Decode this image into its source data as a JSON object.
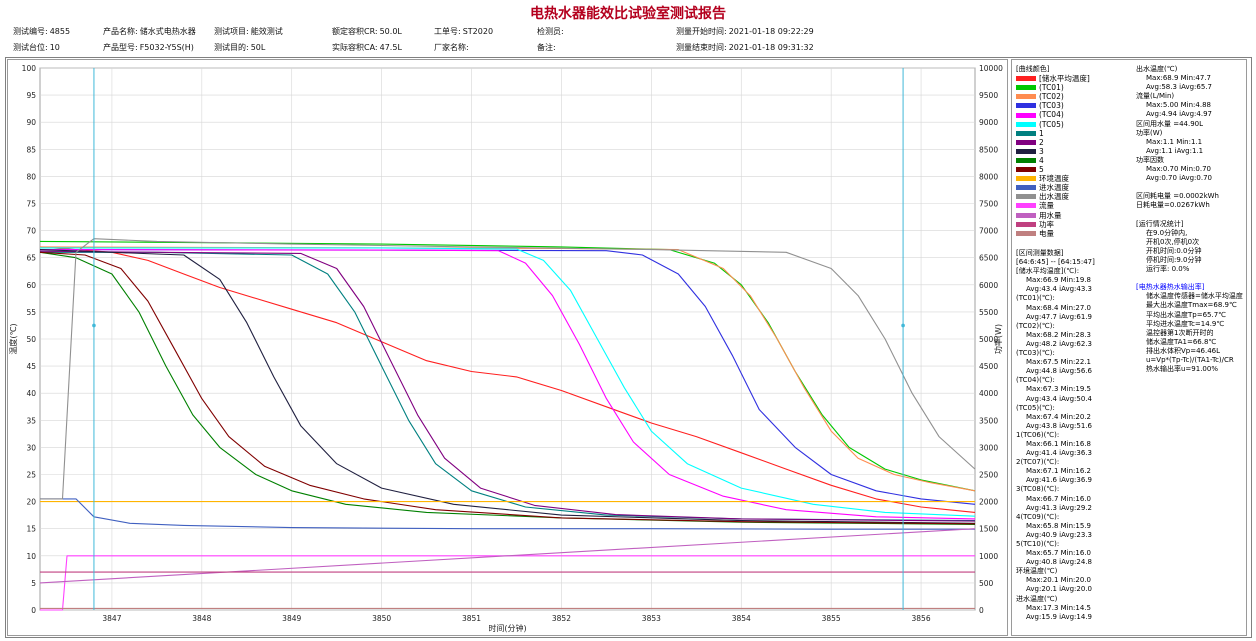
{
  "report": {
    "title": "电热水器能效比试验室测试报告",
    "fields": [
      {
        "label": "测试编号:",
        "value": "4855"
      },
      {
        "label": "产品名称:",
        "value": "储水式电热水器"
      },
      {
        "label": "测试项目:",
        "value": "能效测试"
      },
      {
        "label": "额定容积CR:",
        "value": "50.0L"
      },
      {
        "label": "工单号:",
        "value": "ST2020"
      },
      {
        "label": "检测员:",
        "value": ""
      },
      {
        "label": "测量开始时间:",
        "value": "2021-01-18 09:22:29"
      },
      {
        "label": "测试台位:",
        "value": "10"
      },
      {
        "label": "产品型号:",
        "value": "F5032-Y5S(H)"
      },
      {
        "label": "测试目的:",
        "value": "50L"
      },
      {
        "label": "实际容积CA:",
        "value": "47.5L"
      },
      {
        "label": "厂家名称:",
        "value": ""
      },
      {
        "label": "备注:",
        "value": ""
      },
      {
        "label": "测量结束时间:",
        "value": "2021-01-18 09:31:32"
      }
    ]
  },
  "chart_data": {
    "type": "line",
    "xlabel": "时间(分钟)",
    "ylabel": "温度(℃)",
    "y2label": "功率(W)",
    "xlim": [
      3846.2,
      3856.6
    ],
    "ylim": [
      0,
      100
    ],
    "y2lim": [
      0,
      10000
    ],
    "xticks": [
      "3847",
      "3848",
      "3849",
      "3850",
      "3851",
      "3852",
      "3853",
      "3854",
      "3855",
      "3856"
    ],
    "yticks": [
      "0",
      "5",
      "10",
      "15",
      "20",
      "25",
      "30",
      "35",
      "40",
      "45",
      "50",
      "55",
      "60",
      "65",
      "70",
      "75",
      "80",
      "85",
      "90",
      "95",
      "100"
    ],
    "y2ticks": [
      "0",
      "500",
      "1000",
      "1500",
      "2000",
      "2500",
      "3000",
      "3500",
      "4000",
      "4500",
      "5000",
      "5500",
      "6000",
      "6500",
      "7000",
      "7500",
      "8000",
      "8500",
      "9000",
      "9500",
      "10000"
    ],
    "grid": true,
    "cursors": [
      3846.8,
      3855.8
    ],
    "series": [
      {
        "name": "[储水平均温度]",
        "color": "#ff2020",
        "x": [
          3846.2,
          3847.0,
          3847.4,
          3847.8,
          3848.2,
          3848.6,
          3849.0,
          3849.5,
          3850.0,
          3850.5,
          3851.0,
          3851.5,
          3852.0,
          3852.5,
          3853.0,
          3853.5,
          3854.0,
          3854.5,
          3855.0,
          3855.5,
          3856.0,
          3856.6
        ],
        "y": [
          67.0,
          66.0,
          64.5,
          62.0,
          59.5,
          57.5,
          55.5,
          53.0,
          49.5,
          46.0,
          44.0,
          43.0,
          40.5,
          37.5,
          34.5,
          32.0,
          29.0,
          26.0,
          23.0,
          20.5,
          19.0,
          18.0
        ]
      },
      {
        "name": "(TC01)",
        "color": "#00c800",
        "x": [
          3846.2,
          3850.0,
          3852.0,
          3853.2,
          3853.7,
          3854.0,
          3854.3,
          3854.6,
          3854.9,
          3855.2,
          3855.6,
          3856.0,
          3856.6
        ],
        "y": [
          68.0,
          67.5,
          67.0,
          66.5,
          64.0,
          60.0,
          53.0,
          44.0,
          36.0,
          30.0,
          26.0,
          24.0,
          22.0
        ]
      },
      {
        "name": "(TC02)",
        "color": "#ff8c50",
        "x": [
          3846.2,
          3850.0,
          3852.0,
          3853.3,
          3853.8,
          3854.1,
          3854.4,
          3854.7,
          3855.0,
          3855.3,
          3855.7,
          3856.1,
          3856.6
        ],
        "y": [
          67.0,
          66.8,
          66.7,
          66.5,
          63.0,
          58.0,
          50.0,
          41.0,
          33.0,
          28.0,
          25.0,
          23.5,
          22.0
        ]
      },
      {
        "name": "(TC03)",
        "color": "#3030e0",
        "x": [
          3846.2,
          3850.0,
          3852.5,
          3852.9,
          3853.3,
          3853.6,
          3853.9,
          3854.2,
          3854.6,
          3855.0,
          3855.5,
          3856.0,
          3856.6
        ],
        "y": [
          66.5,
          66.4,
          66.3,
          65.5,
          62.0,
          56.0,
          47.0,
          37.0,
          30.0,
          25.0,
          22.0,
          20.5,
          19.5
        ]
      },
      {
        "name": "(TC04)",
        "color": "#ff00ff",
        "x": [
          3846.2,
          3850.0,
          3851.3,
          3851.6,
          3851.9,
          3852.2,
          3852.5,
          3852.8,
          3853.2,
          3853.8,
          3854.5,
          3855.5,
          3856.6
        ],
        "y": [
          66.5,
          66.4,
          66.3,
          64.0,
          58.0,
          49.0,
          39.0,
          31.0,
          25.0,
          21.0,
          18.5,
          17.2,
          16.8
        ]
      },
      {
        "name": "(TC05)",
        "color": "#00ffff",
        "x": [
          3846.2,
          3850.0,
          3851.5,
          3851.8,
          3852.1,
          3852.4,
          3852.7,
          3853.0,
          3853.4,
          3854.0,
          3854.8,
          3855.6,
          3856.6
        ],
        "y": [
          66.8,
          66.8,
          66.6,
          64.5,
          59.0,
          50.0,
          41.0,
          33.0,
          27.0,
          22.5,
          19.5,
          18.0,
          17.3
        ]
      },
      {
        "name": "1",
        "color": "#008080",
        "x": [
          3846.2,
          3847.5,
          3849.0,
          3849.4,
          3849.7,
          3850.0,
          3850.3,
          3850.6,
          3851.0,
          3851.6,
          3852.5,
          3854.0,
          3856.6
        ],
        "y": [
          66.0,
          66.0,
          65.5,
          62.0,
          55.0,
          45.0,
          35.0,
          27.0,
          22.0,
          19.0,
          17.5,
          16.8,
          16.5
        ]
      },
      {
        "name": "2",
        "color": "#800080",
        "x": [
          3846.2,
          3847.5,
          3849.1,
          3849.5,
          3849.8,
          3850.1,
          3850.4,
          3850.7,
          3851.1,
          3851.7,
          3852.6,
          3854.0,
          3856.6
        ],
        "y": [
          66.2,
          66.0,
          65.8,
          63.0,
          56.0,
          46.0,
          36.0,
          28.0,
          22.5,
          19.3,
          17.6,
          16.8,
          16.4
        ]
      },
      {
        "name": "3",
        "color": "#202040",
        "x": [
          3846.2,
          3847.0,
          3847.8,
          3848.2,
          3848.5,
          3848.8,
          3849.1,
          3849.5,
          3850.0,
          3850.8,
          3852.0,
          3854.0,
          3856.6
        ],
        "y": [
          66.5,
          66.0,
          65.5,
          61.0,
          53.0,
          43.0,
          34.0,
          27.0,
          22.5,
          19.5,
          17.5,
          16.5,
          16.0
        ]
      },
      {
        "name": "4",
        "color": "#008000",
        "x": [
          3846.2,
          3846.6,
          3847.0,
          3847.3,
          3847.6,
          3847.9,
          3848.2,
          3848.6,
          3849.0,
          3849.6,
          3850.5,
          3852.0,
          3854.0,
          3856.6
        ],
        "y": [
          66.0,
          65.0,
          62.0,
          55.0,
          45.0,
          36.0,
          30.0,
          25.0,
          22.0,
          19.5,
          18.0,
          17.0,
          16.2,
          15.8
        ]
      },
      {
        "name": "5",
        "color": "#800000",
        "x": [
          3846.2,
          3846.7,
          3847.1,
          3847.4,
          3847.7,
          3848.0,
          3848.3,
          3848.7,
          3849.2,
          3849.8,
          3850.6,
          3852.0,
          3854.0,
          3856.6
        ],
        "y": [
          66.0,
          65.5,
          63.0,
          57.0,
          48.0,
          39.0,
          32.0,
          26.5,
          23.0,
          20.5,
          18.5,
          17.0,
          16.3,
          15.9
        ]
      },
      {
        "name": "环境温度",
        "color": "#ffb400",
        "x": [
          3846.2,
          3856.6
        ],
        "y": [
          20.0,
          20.0
        ]
      },
      {
        "name": "进水温度",
        "color": "#4060c0",
        "x": [
          3846.2,
          3846.6,
          3846.8,
          3847.2,
          3847.8,
          3849.0,
          3851.0,
          3853.0,
          3855.0,
          3856.6
        ],
        "y": [
          20.5,
          20.5,
          17.2,
          16.0,
          15.6,
          15.2,
          15.0,
          15.0,
          14.9,
          14.9
        ]
      },
      {
        "name": "出水温度",
        "color": "#909090",
        "x": [
          3846.2,
          3846.45,
          3846.6,
          3846.8,
          3847.5,
          3849.0,
          3851.0,
          3853.0,
          3854.5,
          3855.0,
          3855.3,
          3855.6,
          3855.9,
          3856.2,
          3856.6
        ],
        "y": [
          20.5,
          20.5,
          66.0,
          68.5,
          68.0,
          67.5,
          67.0,
          66.5,
          66.0,
          63.0,
          58.0,
          50.0,
          40.0,
          32.0,
          26.0
        ]
      },
      {
        "name": "流量",
        "color": "#ff40ff",
        "x": [
          3846.2,
          3846.45,
          3846.5,
          3856.6
        ],
        "y": [
          0,
          0,
          10.0,
          10.0
        ]
      },
      {
        "name": "用水量",
        "color": "#c060c0",
        "x": [
          3846.2,
          3856.6
        ],
        "y": [
          5.0,
          15.0
        ]
      },
      {
        "name": "功率",
        "color": "#c04080",
        "x": [
          3846.2,
          3856.6
        ],
        "y": [
          7.0,
          7.0
        ]
      },
      {
        "name": "电量",
        "color": "#c08080",
        "x": [
          3846.2,
          3856.6
        ],
        "y": [
          0.3,
          0.3
        ]
      }
    ]
  },
  "side": {
    "legend_title": "[曲线颜色]",
    "legend": [
      {
        "label": "[储水平均温度]",
        "color": "#ff2020"
      },
      {
        "label": "(TC01)",
        "color": "#00c800"
      },
      {
        "label": "(TC02)",
        "color": "#ff8c50"
      },
      {
        "label": "(TC03)",
        "color": "#3030e0"
      },
      {
        "label": "(TC04)",
        "color": "#ff00ff"
      },
      {
        "label": "(TC05)",
        "color": "#00ffff"
      },
      {
        "label": "1",
        "color": "#008080"
      },
      {
        "label": "2",
        "color": "#800080"
      },
      {
        "label": "3",
        "color": "#202040"
      },
      {
        "label": "4",
        "color": "#008000"
      },
      {
        "label": "5",
        "color": "#800000"
      },
      {
        "label": "环境温度",
        "color": "#ffb400"
      },
      {
        "label": "进水温度",
        "color": "#4060c0"
      },
      {
        "label": "出水温度",
        "color": "#909090"
      },
      {
        "label": "流量",
        "color": "#ff40ff"
      },
      {
        "label": "用水量",
        "color": "#c060c0"
      },
      {
        "label": "功率",
        "color": "#c04080"
      },
      {
        "label": "电量",
        "color": "#c08080"
      }
    ],
    "interval": [
      {
        "t": "[区间测量数据]"
      },
      {
        "t": "[64:6:45] -- [64:15:47]"
      },
      {
        "t": "[储水平均温度](℃):"
      },
      {
        "t": "Max:66.9 Min:19.8",
        "i": true
      },
      {
        "t": "Avg:43.4 iAvg:43.3",
        "i": true
      },
      {
        "t": "(TC01)(℃):"
      },
      {
        "t": "Max:68.4 Min:27.0",
        "i": true
      },
      {
        "t": "Avg:47.7 iAvg:61.9",
        "i": true
      },
      {
        "t": "(TC02)(℃):"
      },
      {
        "t": "Max:68.2 Min:28.3",
        "i": true
      },
      {
        "t": "Avg:48.2 iAvg:62.3",
        "i": true
      },
      {
        "t": "(TC03)(℃):"
      },
      {
        "t": "Max:67.5 Min:22.1",
        "i": true
      },
      {
        "t": "Avg:44.8 iAvg:56.6",
        "i": true
      },
      {
        "t": "(TC04)(℃):"
      },
      {
        "t": "Max:67.3 Min:19.5",
        "i": true
      },
      {
        "t": "Avg:43.4 iAvg:50.4",
        "i": true
      },
      {
        "t": "(TC05)(℃):"
      },
      {
        "t": "Max:67.4 Min:20.2",
        "i": true
      },
      {
        "t": "Avg:43.8 iAvg:51.6",
        "i": true
      },
      {
        "t": "1(TC06)(℃):"
      },
      {
        "t": "Max:66.1 Min:16.8",
        "i": true
      },
      {
        "t": "Avg:41.4 iAvg:36.3",
        "i": true
      },
      {
        "t": "2(TC07)(℃):"
      },
      {
        "t": "Max:67.1 Min:16.2",
        "i": true
      },
      {
        "t": "Avg:41.6 iAvg:36.9",
        "i": true
      },
      {
        "t": "3(TC08)(℃):"
      },
      {
        "t": "Max:66.7 Min:16.0",
        "i": true
      },
      {
        "t": "Avg:41.3 iAvg:29.2",
        "i": true
      },
      {
        "t": "4(TC09)(℃):"
      },
      {
        "t": "Max:65.8 Min:15.9",
        "i": true
      },
      {
        "t": "Avg:40.9 iAvg:23.3",
        "i": true
      },
      {
        "t": "5(TC10)(℃):"
      },
      {
        "t": "Max:65.7 Min:16.0",
        "i": true
      },
      {
        "t": "Avg:40.8 iAvg:24.8",
        "i": true
      },
      {
        "t": "环境温度(℃)"
      },
      {
        "t": "Max:20.1 Min:20.0",
        "i": true
      },
      {
        "t": "Avg:20.1 iAvg:20.0",
        "i": true
      },
      {
        "t": "进水温度(℃)"
      },
      {
        "t": "Max:17.3 Min:14.5",
        "i": true
      },
      {
        "t": "Avg:15.9 iAvg:14.9",
        "i": true
      }
    ],
    "stats": [
      {
        "t": "出水温度(℃)"
      },
      {
        "t": "Max:68.9 Min:47.7",
        "i": true
      },
      {
        "t": "Avg:58.3 iAvg:65.7",
        "i": true
      },
      {
        "t": "流量(L/Min)"
      },
      {
        "t": "Max:5.00 Min:4.88",
        "i": true
      },
      {
        "t": "Avg:4.94 iAvg:4.97",
        "i": true
      },
      {
        "t": "区间用水量 =44.90L"
      },
      {
        "t": "功率(W)"
      },
      {
        "t": "Max:1.1 Min:1.1",
        "i": true
      },
      {
        "t": "Avg:1.1 iAvg:1.1",
        "i": true
      },
      {
        "t": "功率因数"
      },
      {
        "t": "Max:0.70 Min:0.70",
        "i": true
      },
      {
        "t": "Avg:0.70 iAvg:0.70",
        "i": true
      },
      {
        "t": ""
      },
      {
        "t": "区间耗电量 =0.0002kWh"
      },
      {
        "t": "日耗电量=0.0267kWh"
      },
      {
        "t": ""
      },
      {
        "t": "[运行情况统计]"
      },
      {
        "t": "在9.0分钟内,",
        "i": true
      },
      {
        "t": "开机0次,停机0次",
        "i": true
      },
      {
        "t": "开机时间:0.0分钟",
        "i": true
      },
      {
        "t": "停机时间:9.0分钟",
        "i": true
      },
      {
        "t": "运行率: 0.0%",
        "i": true
      },
      {
        "t": ""
      },
      {
        "t": "[电热水器热水输出率]",
        "blue": true
      },
      {
        "t": "储水温度传感器=储水平均温度",
        "i": true
      },
      {
        "t": "最大出水温度Tmax=68.9℃",
        "i": true
      },
      {
        "t": "平均出水温度Tp=65.7℃",
        "i": true
      },
      {
        "t": "平均进水温度Tc=14.9℃",
        "i": true
      },
      {
        "t": "温控器第1次断开时的",
        "i": true
      },
      {
        "t": "储水温度TA1=66.8℃",
        "i": true
      },
      {
        "t": "排出水体积Vp=46.46L",
        "i": true
      },
      {
        "t": "u=Vp*(Tp-Tc)/(TA1-Tc)/CR",
        "i": true
      },
      {
        "t": "热水输出率u=91.00%",
        "i": true
      }
    ]
  }
}
